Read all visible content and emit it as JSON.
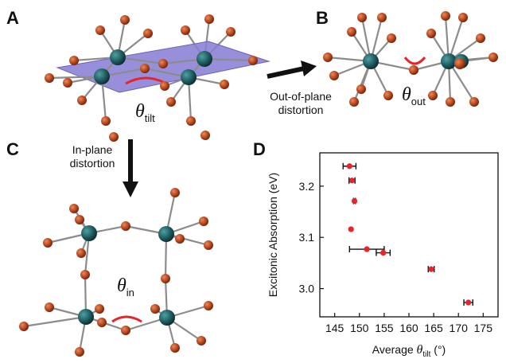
{
  "panels": {
    "a": "A",
    "b": "B",
    "c": "C",
    "d": "D"
  },
  "labels": {
    "out_caption_1": "Out-of-plane",
    "out_caption_2": "distortion",
    "in_caption_1": "In-plane",
    "in_caption_2": "distortion",
    "theta": "θ",
    "sub_tilt": "tilt",
    "sub_out": "out",
    "sub_in": "in"
  },
  "colors": {
    "plane": "#8a7fd6",
    "metal": "#1e5a5e",
    "halide": "#b4441c",
    "bond": "#8c8c8c",
    "angle_arc": "#e8232a",
    "marker": "#e8232a"
  },
  "chart_data": {
    "type": "scatter",
    "title": "",
    "xlabel": "Average θtilt (°)",
    "ylabel": "Excitonic Absorption (eV)",
    "xlim": [
      142,
      178
    ],
    "ylim": [
      2.945,
      3.265
    ],
    "xticks": [
      145,
      150,
      155,
      160,
      165,
      170,
      175
    ],
    "yticks": [
      3.0,
      3.1,
      3.2
    ],
    "ytick_labels": [
      "3.0",
      "3.1",
      "3.2"
    ],
    "points": [
      {
        "x": 148.0,
        "y": 3.239,
        "xerr": 1.3
      },
      {
        "x": 148.5,
        "y": 3.211,
        "xerr": 0.6
      },
      {
        "x": 149.0,
        "y": 3.171,
        "xerr": 0.2
      },
      {
        "x": 148.3,
        "y": 3.116,
        "xerr": 0.0
      },
      {
        "x": 151.5,
        "y": 3.077,
        "xerr": 3.5
      },
      {
        "x": 154.8,
        "y": 3.07,
        "xerr": 1.4
      },
      {
        "x": 164.5,
        "y": 3.038,
        "xerr": 0.6
      },
      {
        "x": 172.0,
        "y": 2.973,
        "xerr": 0.9
      }
    ]
  }
}
